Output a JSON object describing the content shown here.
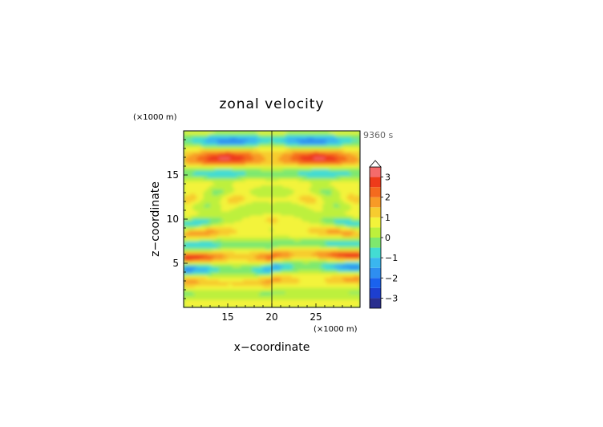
{
  "chart_data": {
    "type": "heatmap",
    "title": "zonal velocity",
    "xlabel": "x−coordinate",
    "ylabel": "z−coordinate",
    "x_unit": "(×1000 m)",
    "y_unit": "(×1000 m)",
    "time_label": "9360 s",
    "xlim": [
      10,
      30
    ],
    "ylim": [
      0,
      20
    ],
    "x_ticks": [
      15,
      20,
      25
    ],
    "y_ticks": [
      5,
      10,
      15
    ],
    "colorbar": {
      "levels": [
        -3.5,
        -3,
        -2.5,
        -2,
        -1.5,
        -1,
        -0.5,
        0,
        0.5,
        1,
        1.5,
        2,
        2.5,
        3,
        3.5
      ],
      "tick_labels": [
        "3",
        "2",
        "1",
        "0",
        "−1",
        "−2",
        "−3"
      ],
      "tick_values": [
        3,
        2,
        1,
        0,
        -1,
        -2,
        -3
      ],
      "colors": [
        "#2a2f8f",
        "#1d3fd0",
        "#1a62ee",
        "#2e8ef0",
        "#3ab6ef",
        "#43dcd3",
        "#7ee86f",
        "#bdf03c",
        "#f3f33a",
        "#f7cc2f",
        "#f89a26",
        "#f46a1e",
        "#ee3b1a",
        "#f46b6b",
        "#f6a8a8",
        "#ffffff"
      ],
      "extend_top": true
    }
  }
}
